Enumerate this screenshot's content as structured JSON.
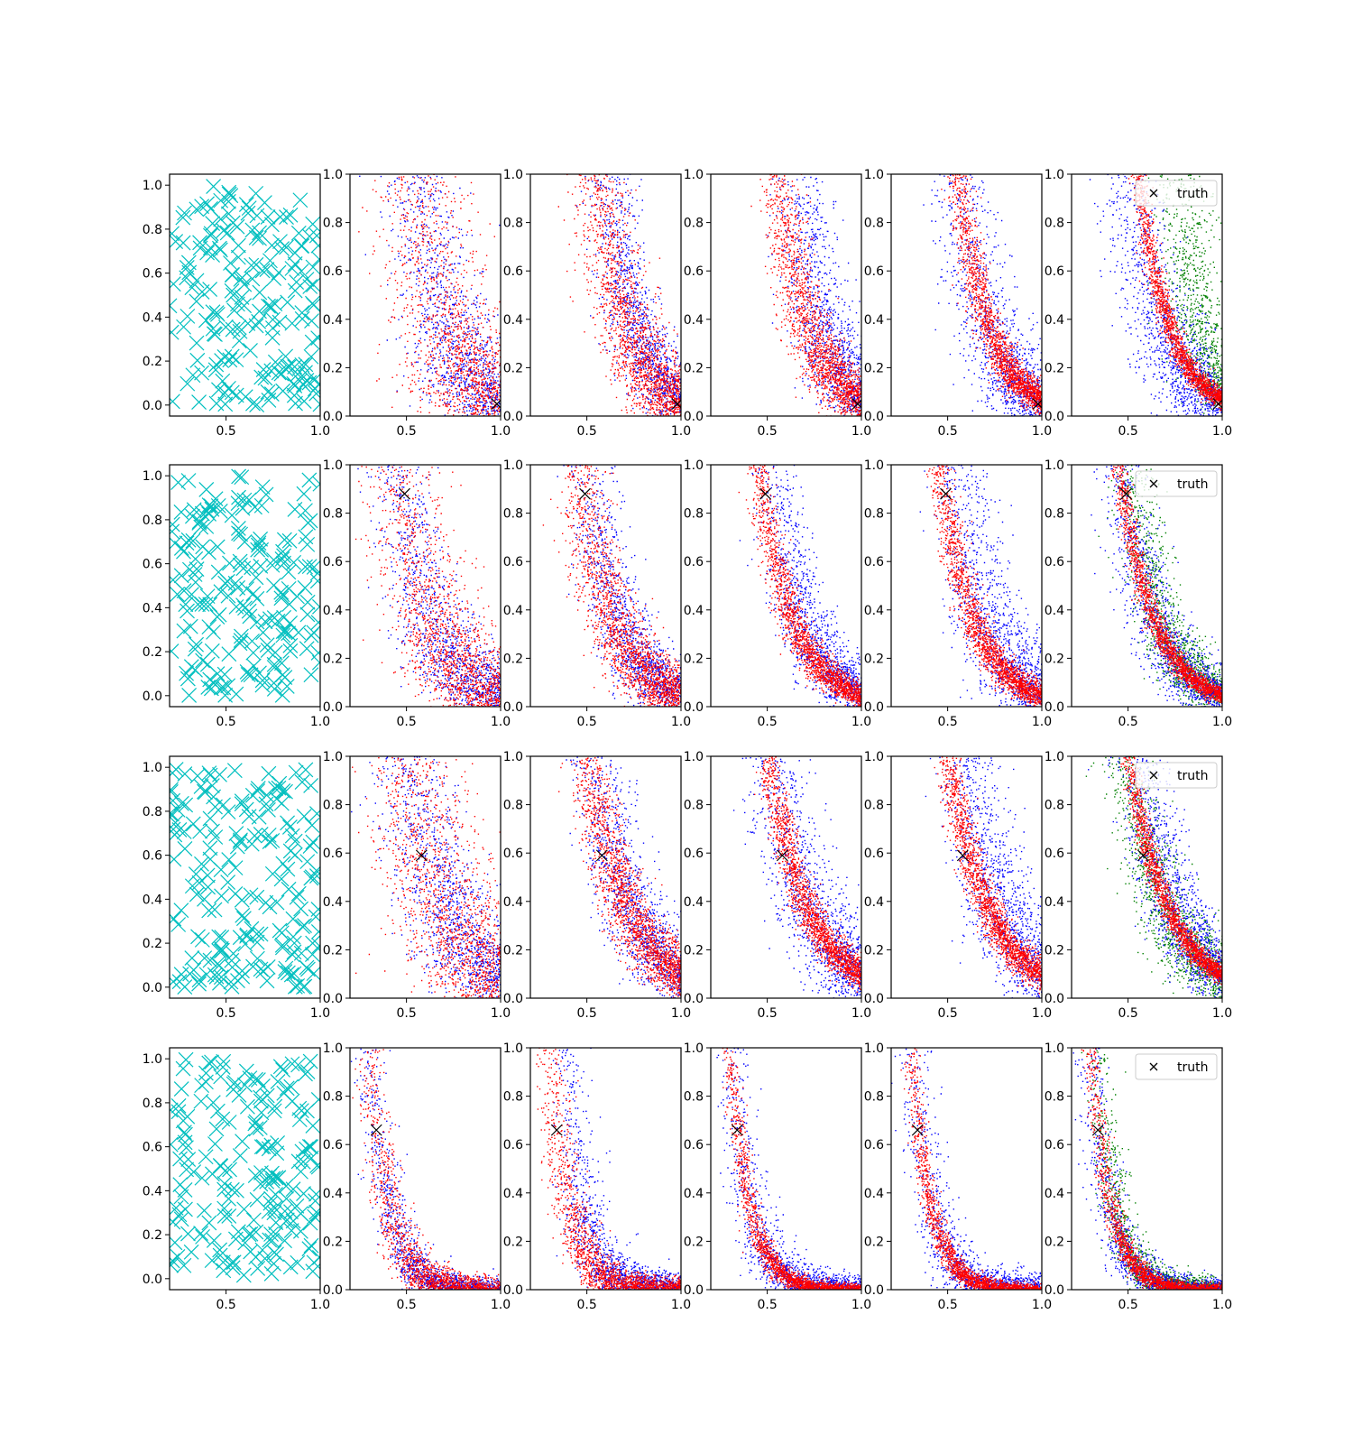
{
  "figure": {
    "grid_rows": 4,
    "grid_cols": 6,
    "legend_label": "truth"
  },
  "chart_data": {
    "type": "scatter",
    "colors": {
      "samples": "#00bfbf",
      "series_1": "#ff0000",
      "series_2": "#0000ff",
      "series_3": "#008000",
      "truth": "#000000"
    },
    "sample_panel": {
      "xlim": [
        0.2,
        1.0
      ],
      "ylim": [
        -0.05,
        1.05
      ],
      "xticks": [
        0.5,
        1.0
      ],
      "xtick_labels": [
        "0.5",
        "1.0"
      ],
      "yticks": [
        0.0,
        0.2,
        0.4,
        0.6,
        0.8,
        1.0
      ],
      "ytick_labels": [
        "0.0",
        "0.2",
        "0.4",
        "0.6",
        "0.8",
        "1.0"
      ],
      "marker": "x",
      "point_count": 200
    },
    "curve_panel": {
      "xlim": [
        0.2,
        1.0
      ],
      "ylim": [
        0.0,
        1.0
      ],
      "xticks": [
        0.5,
        1.0
      ],
      "xtick_labels": [
        "0.5",
        "1.0"
      ],
      "yticks": [
        0.0,
        0.2,
        0.4,
        0.6,
        0.8,
        1.0
      ],
      "ytick_labels": [
        "0.0",
        "0.2",
        "0.4",
        "0.6",
        "0.8",
        "1.0"
      ],
      "legend_position": "upper right",
      "legend_in_column": 6
    },
    "rows": [
      {
        "truth": {
          "x": 0.98,
          "y": 0.05
        },
        "curve_params": {
          "x0": 0.55,
          "y_at_x0": 1.0,
          "x1": 1.0,
          "y_at_x1": 0.07
        },
        "panels": [
          {
            "red_spread": 0.12,
            "blue_spread": 0.1,
            "blue_shift": 0.0,
            "green": false
          },
          {
            "red_spread": 0.07,
            "blue_spread": 0.06,
            "blue_shift": 0.05,
            "green": false
          },
          {
            "red_spread": 0.05,
            "blue_spread": 0.07,
            "blue_shift": 0.1,
            "green": false
          },
          {
            "red_spread": 0.03,
            "blue_spread": 0.08,
            "blue_shift": 0.0,
            "green": false
          },
          {
            "red_spread": 0.02,
            "blue_spread": 0.08,
            "blue_shift": -0.04,
            "green": true,
            "green_shift": 0.2
          }
        ]
      },
      {
        "truth": {
          "x": 0.49,
          "y": 0.88
        },
        "curve_params": {
          "x0": 0.45,
          "y_at_x0": 1.0,
          "x1": 1.0,
          "y_at_x1": 0.05
        },
        "panels": [
          {
            "red_spread": 0.1,
            "blue_spread": 0.08,
            "blue_shift": 0.0,
            "green": false
          },
          {
            "red_spread": 0.06,
            "blue_spread": 0.06,
            "blue_shift": 0.04,
            "green": false
          },
          {
            "red_spread": 0.03,
            "blue_spread": 0.06,
            "blue_shift": 0.07,
            "green": false
          },
          {
            "red_spread": 0.03,
            "blue_spread": 0.08,
            "blue_shift": 0.09,
            "green": false
          },
          {
            "red_spread": 0.02,
            "blue_spread": 0.06,
            "blue_shift": 0.0,
            "green": true,
            "green_shift": 0.05
          }
        ]
      },
      {
        "truth": {
          "x": 0.58,
          "y": 0.59
        },
        "curve_params": {
          "x0": 0.5,
          "y_at_x0": 1.0,
          "x1": 1.0,
          "y_at_x1": 0.1
        },
        "panels": [
          {
            "red_spread": 0.12,
            "blue_spread": 0.1,
            "blue_shift": 0.0,
            "green": false
          },
          {
            "red_spread": 0.05,
            "blue_spread": 0.07,
            "blue_shift": 0.03,
            "green": false
          },
          {
            "red_spread": 0.03,
            "blue_spread": 0.08,
            "blue_shift": 0.02,
            "green": false
          },
          {
            "red_spread": 0.03,
            "blue_spread": 0.08,
            "blue_shift": 0.08,
            "green": false
          },
          {
            "red_spread": 0.02,
            "blue_spread": 0.07,
            "blue_shift": 0.04,
            "green": true,
            "green_shift": -0.01
          }
        ]
      },
      {
        "truth": {
          "x": 0.34,
          "y": 0.66
        },
        "curve_params": {
          "x0": 0.3,
          "y_at_x0": 1.0,
          "x1": 0.85,
          "y_at_x1": 0.0
        },
        "panels": [
          {
            "red_spread": 0.04,
            "blue_spread": 0.04,
            "blue_shift": 0.0,
            "green": false
          },
          {
            "red_spread": 0.04,
            "blue_spread": 0.05,
            "blue_shift": 0.09,
            "green": false
          },
          {
            "red_spread": 0.02,
            "blue_spread": 0.05,
            "blue_shift": 0.01,
            "green": false
          },
          {
            "red_spread": 0.02,
            "blue_spread": 0.05,
            "blue_shift": 0.02,
            "green": false
          },
          {
            "red_spread": 0.02,
            "blue_spread": 0.04,
            "blue_shift": -0.01,
            "green": true,
            "green_shift": 0.03
          }
        ]
      }
    ]
  }
}
